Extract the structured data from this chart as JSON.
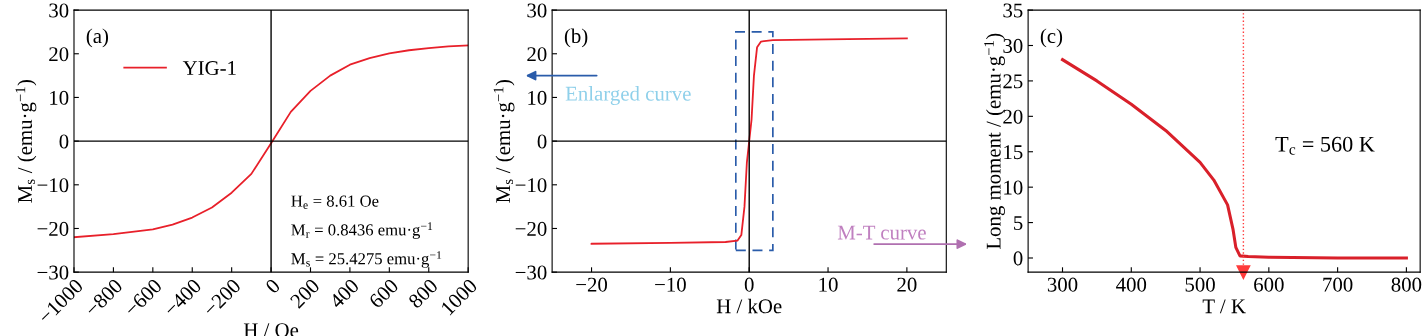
{
  "chart_data": [
    {
      "type": "line",
      "xlabel": "H / Oe",
      "ylabel": "M$_{s}$ / (emu·g$^{−1}$)",
      "xlim": [
        -1000,
        1000
      ],
      "xticks": [
        -1000,
        -800,
        -600,
        -400,
        -200,
        0,
        200,
        400,
        600,
        800,
        1000
      ],
      "ylim": [
        -30,
        30
      ],
      "yticks": [
        -30,
        -20,
        -10,
        0,
        10,
        20,
        30
      ],
      "grid": false,
      "legend": "top left",
      "series": [
        {
          "name": "YIG-1",
          "color": "#e8202a",
          "x": [
            -1000,
            -800,
            -600,
            -500,
            -400,
            -300,
            -200,
            -100,
            0,
            100,
            200,
            300,
            400,
            500,
            600,
            700,
            800,
            900,
            1000
          ],
          "values": [
            -22,
            -21.3,
            -20.2,
            -19.1,
            -17.5,
            -15.2,
            -11.8,
            -7.5,
            -0.5,
            6.7,
            11.5,
            15,
            17.5,
            19,
            20.1,
            20.8,
            21.3,
            21.7,
            21.9
          ]
        }
      ],
      "ref_lines": [
        {
          "axis": "x",
          "value": 0,
          "color": "#000000"
        },
        {
          "axis": "y",
          "value": 0,
          "color": "#000000"
        }
      ],
      "annotations": [
        "(a)",
        "H$_{e}$ = 8.61 Oe",
        "M$_{r}$ = 0.8436 emu·g$^{−1}$",
        "M$_{s}$ = 25.4275 emu·g$^{−1}$"
      ]
    },
    {
      "type": "line",
      "xlabel": "H / kOe",
      "ylabel": "M$_{s}$ / (emu·g$^{−1}$)",
      "xlim": [
        -25,
        25
      ],
      "xticks": [
        -20,
        -10,
        0,
        10,
        20
      ],
      "ylim": [
        -30,
        30
      ],
      "yticks": [
        -30,
        -20,
        -10,
        0,
        10,
        20,
        30
      ],
      "grid": false,
      "series": [
        {
          "color": "#e8202a",
          "x": [
            -20,
            -10,
            -3,
            -1.5,
            -1,
            -0.6,
            -0.3,
            0,
            0.3,
            0.6,
            1,
            1.5,
            3,
            10,
            20
          ],
          "values": [
            -23.5,
            -23.3,
            -23.1,
            -22.8,
            -21.5,
            -15,
            -5,
            0,
            5,
            15,
            21.5,
            22.8,
            23.1,
            23.3,
            23.5
          ]
        }
      ],
      "ref_lines": [
        {
          "axis": "x",
          "value": 0,
          "color": "#000000"
        },
        {
          "axis": "y",
          "value": 0,
          "color": "#000000"
        }
      ],
      "annotations": [
        "(b)",
        "Enlarged curve",
        "M-T curve"
      ]
    },
    {
      "type": "line",
      "xlabel": "T / K",
      "ylabel": "Long moment / (emu·g$^{−1}$)",
      "xlim": [
        250,
        820
      ],
      "xticks": [
        300,
        400,
        500,
        600,
        700,
        800
      ],
      "ylim": [
        -2,
        35
      ],
      "yticks": [
        0,
        5,
        10,
        15,
        20,
        25,
        30,
        35
      ],
      "grid": false,
      "series": [
        {
          "color": "#d9202a",
          "x": [
            300,
            350,
            400,
            450,
            500,
            520,
            540,
            548,
            552,
            558,
            570,
            600,
            700,
            800
          ],
          "values": [
            28,
            25,
            21.7,
            18,
            13.5,
            11,
            7.5,
            4,
            1.5,
            0.3,
            0.2,
            0.1,
            0,
            0
          ]
        }
      ],
      "ref_lines": [
        {
          "axis": "x",
          "value": 563,
          "color": "#ff3b3b",
          "line_style": "dotted"
        }
      ],
      "annotations": [
        "(c)",
        "T$_{c}$ = 560 K"
      ]
    }
  ]
}
